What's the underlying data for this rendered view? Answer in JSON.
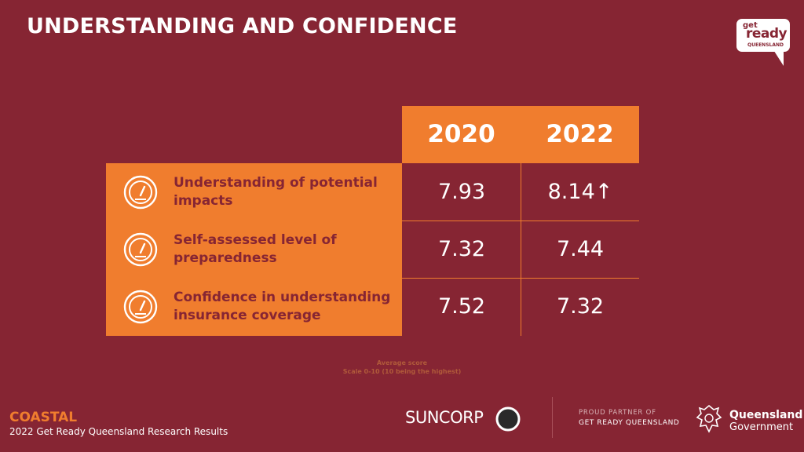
{
  "header": {
    "title": "UNDERSTANDING AND CONFIDENCE"
  },
  "logo": {
    "get": "get",
    "ready": "ready",
    "region": "QUEENSLAND"
  },
  "table": {
    "years": [
      "2020",
      "2022"
    ],
    "rows": [
      {
        "label": "Understanding of potential impacts",
        "icon": "gauge-icon",
        "v2020": "7.93",
        "v2022": "8.14↑"
      },
      {
        "label": "Self-assessed level of preparedness",
        "icon": "gauge-icon",
        "v2020": "7.32",
        "v2022": "7.44"
      },
      {
        "label": "Confidence in understanding insurance coverage",
        "icon": "gauge-icon",
        "v2020": "7.52",
        "v2022": "7.32"
      }
    ]
  },
  "note": {
    "line1": "Average score",
    "line2": "Scale 0-10 (10 being the highest)"
  },
  "footer": {
    "region": "COASTAL",
    "subtitle": "2022 Get Ready Queensland Research Results",
    "suncorp": "SUNCORP",
    "partner_line1": "PROUD PARTNER OF",
    "partner_line2": "GET READY QUEENSLAND",
    "qld_line1": "Queensland",
    "qld_line2": "Government"
  },
  "colors": {
    "background": "#862533",
    "accent": "#f07d2e",
    "text": "#ffffff"
  }
}
